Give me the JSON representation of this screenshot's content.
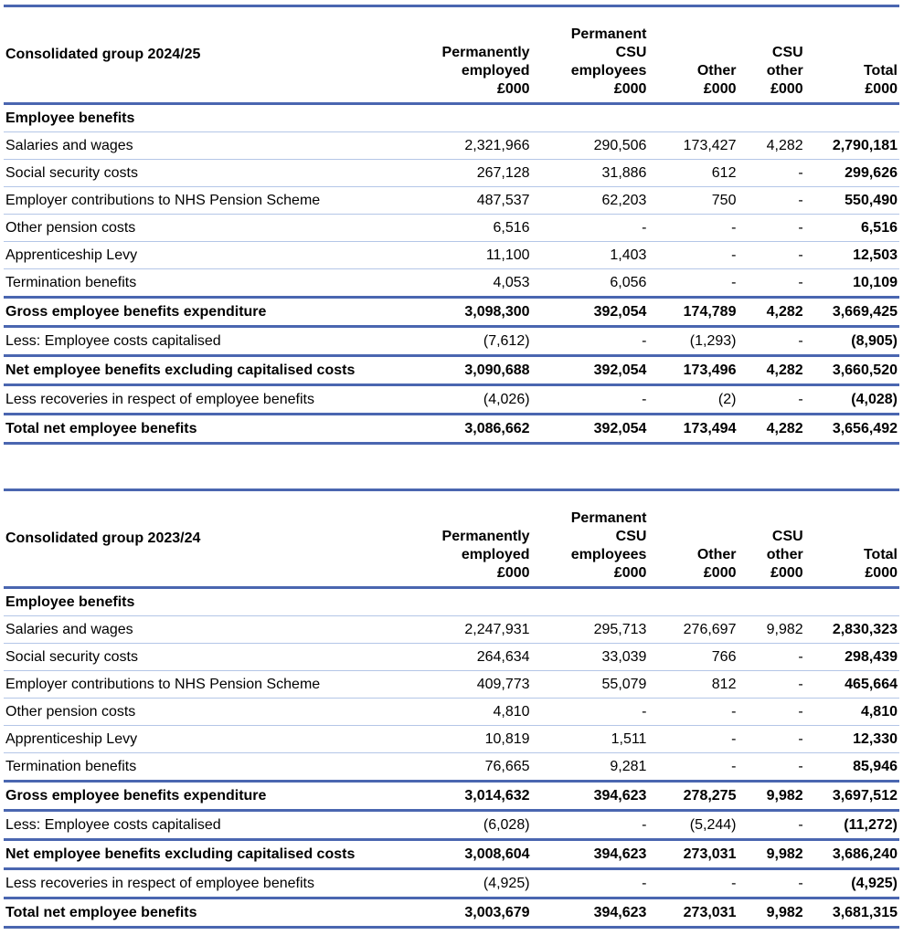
{
  "colors": {
    "rule_major": "#4a66b0",
    "rule_minor": "#b4c6e7"
  },
  "tables": [
    {
      "title": "Consolidated group 2024/25",
      "headers": [
        [
          "Permanently",
          "employed",
          "£000"
        ],
        [
          "Permanent",
          "CSU",
          "employees",
          "£000"
        ],
        [
          "Other",
          "£000"
        ],
        [
          "CSU",
          "other",
          "£000"
        ],
        [
          "Total",
          "£000"
        ]
      ],
      "rows": [
        {
          "type": "section",
          "label": "Employee benefits",
          "values": [
            "",
            "",
            "",
            "",
            ""
          ]
        },
        {
          "type": "normal",
          "label": "Salaries and wages",
          "values": [
            "2,321,966",
            "290,506",
            "173,427",
            "4,282",
            "2,790,181"
          ]
        },
        {
          "type": "normal",
          "label": "Social security costs",
          "values": [
            "267,128",
            "31,886",
            "612",
            "-",
            "299,626"
          ]
        },
        {
          "type": "normal",
          "label": "Employer contributions to NHS Pension Scheme",
          "values": [
            "487,537",
            "62,203",
            "750",
            "-",
            "550,490"
          ]
        },
        {
          "type": "normal",
          "label": "Other pension costs",
          "values": [
            "6,516",
            "-",
            "-",
            "-",
            "6,516"
          ]
        },
        {
          "type": "normal",
          "label": "Apprenticeship Levy",
          "values": [
            "11,100",
            "1,403",
            "-",
            "-",
            "12,503"
          ]
        },
        {
          "type": "normal",
          "label": "Termination benefits",
          "values": [
            "4,053",
            "6,056",
            "-",
            "-",
            "10,109"
          ]
        },
        {
          "type": "bold",
          "label": "Gross employee benefits expenditure",
          "values": [
            "3,098,300",
            "392,054",
            "174,789",
            "4,282",
            "3,669,425"
          ]
        },
        {
          "type": "normal",
          "label": "Less: Employee costs capitalised",
          "values": [
            "(7,612)",
            "-",
            "(1,293)",
            "-",
            "(8,905)"
          ]
        },
        {
          "type": "bold",
          "label": "Net employee benefits excluding capitalised costs",
          "values": [
            "3,090,688",
            "392,054",
            "173,496",
            "4,282",
            "3,660,520"
          ]
        },
        {
          "type": "normal",
          "label": "Less recoveries in respect of employee benefits",
          "values": [
            "(4,026)",
            "-",
            "(2)",
            "-",
            "(4,028)"
          ]
        },
        {
          "type": "bold",
          "label": "Total net employee benefits",
          "values": [
            "3,086,662",
            "392,054",
            "173,494",
            "4,282",
            "3,656,492"
          ]
        }
      ]
    },
    {
      "title": "Consolidated group 2023/24",
      "headers": [
        [
          "Permanently",
          "employed",
          "£000"
        ],
        [
          "Permanent",
          "CSU",
          "employees",
          "£000"
        ],
        [
          "Other",
          "£000"
        ],
        [
          "CSU",
          "other",
          "£000"
        ],
        [
          "Total",
          "£000"
        ]
      ],
      "rows": [
        {
          "type": "section",
          "label": "Employee benefits",
          "values": [
            "",
            "",
            "",
            "",
            ""
          ]
        },
        {
          "type": "normal",
          "label": "Salaries and wages",
          "values": [
            "2,247,931",
            "295,713",
            "276,697",
            "9,982",
            "2,830,323"
          ]
        },
        {
          "type": "normal",
          "label": "Social security costs",
          "values": [
            "264,634",
            "33,039",
            "766",
            "-",
            "298,439"
          ]
        },
        {
          "type": "normal",
          "label": "Employer contributions to NHS Pension Scheme",
          "values": [
            "409,773",
            "55,079",
            "812",
            "-",
            "465,664"
          ]
        },
        {
          "type": "normal",
          "label": "Other pension costs",
          "values": [
            "4,810",
            "-",
            "-",
            "-",
            "4,810"
          ]
        },
        {
          "type": "normal",
          "label": "Apprenticeship Levy",
          "values": [
            "10,819",
            "1,511",
            "-",
            "-",
            "12,330"
          ]
        },
        {
          "type": "normal",
          "label": "Termination benefits",
          "values": [
            "76,665",
            "9,281",
            "-",
            "-",
            "85,946"
          ]
        },
        {
          "type": "bold",
          "label": "Gross employee benefits expenditure",
          "values": [
            "3,014,632",
            "394,623",
            "278,275",
            "9,982",
            "3,697,512"
          ]
        },
        {
          "type": "normal",
          "label": "Less: Employee costs capitalised",
          "values": [
            "(6,028)",
            "-",
            "(5,244)",
            "-",
            "(11,272)"
          ]
        },
        {
          "type": "bold",
          "label": "Net employee benefits excluding capitalised costs",
          "values": [
            "3,008,604",
            "394,623",
            "273,031",
            "9,982",
            "3,686,240"
          ]
        },
        {
          "type": "normal",
          "label": "Less recoveries in respect of employee benefits",
          "values": [
            "(4,925)",
            "-",
            "-",
            "-",
            "(4,925)"
          ]
        },
        {
          "type": "bold",
          "label": "Total net employee benefits",
          "values": [
            "3,003,679",
            "394,623",
            "273,031",
            "9,982",
            "3,681,315"
          ]
        }
      ]
    }
  ]
}
